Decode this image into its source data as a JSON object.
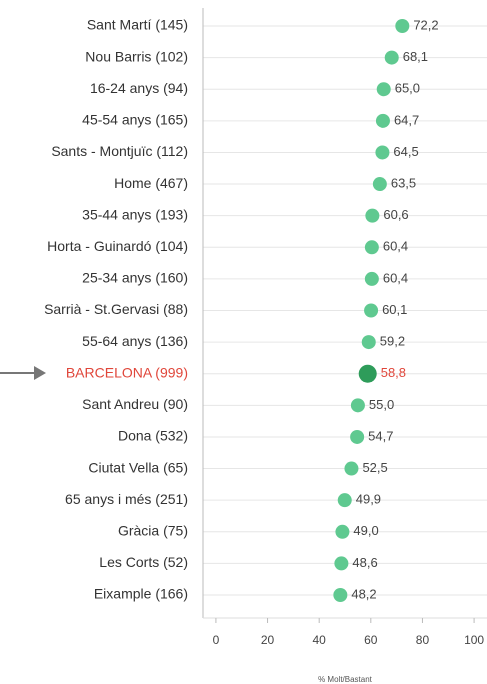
{
  "chart_data": {
    "type": "dot",
    "x_axis_label": "% Molt/Bastant",
    "categories": [
      "Sant Martí (145)",
      "Nou Barris (102)",
      "16-24 anys (94)",
      "45-54 anys (165)",
      "Sants - Montjuïc (112)",
      "Home (467)",
      "35-44 anys (193)",
      "Horta - Guinardó (104)",
      "25-34 anys (160)",
      "Sarrià - St.Gervasi (88)",
      "55-64 anys (136)",
      "BARCELONA (999)",
      "Sant Andreu (90)",
      "Dona (532)",
      "Ciutat Vella (65)",
      "65 anys i més (251)",
      "Gràcia (75)",
      "Les Corts (52)",
      "Eixample (166)"
    ],
    "values": [
      72.2,
      68.1,
      65.0,
      64.7,
      64.5,
      63.5,
      60.6,
      60.4,
      60.4,
      60.1,
      59.2,
      58.8,
      55.0,
      54.7,
      52.5,
      49.9,
      49.0,
      48.6,
      48.2
    ],
    "value_labels": [
      "72,2",
      "68,1",
      "65,0",
      "64,7",
      "64,5",
      "63,5",
      "60,6",
      "60,4",
      "60,4",
      "60,1",
      "59,2",
      "58,8",
      "55,0",
      "54,7",
      "52,5",
      "49,9",
      "49,0",
      "48,6",
      "48,2"
    ],
    "color": "#5fc990",
    "highlight": {
      "index": 11,
      "color": "#2e9c5a",
      "label_color": "#e0463a"
    },
    "xlim": [
      -5,
      105
    ],
    "xticks": [
      0,
      20,
      40,
      60,
      80,
      100
    ],
    "grid": true
  }
}
